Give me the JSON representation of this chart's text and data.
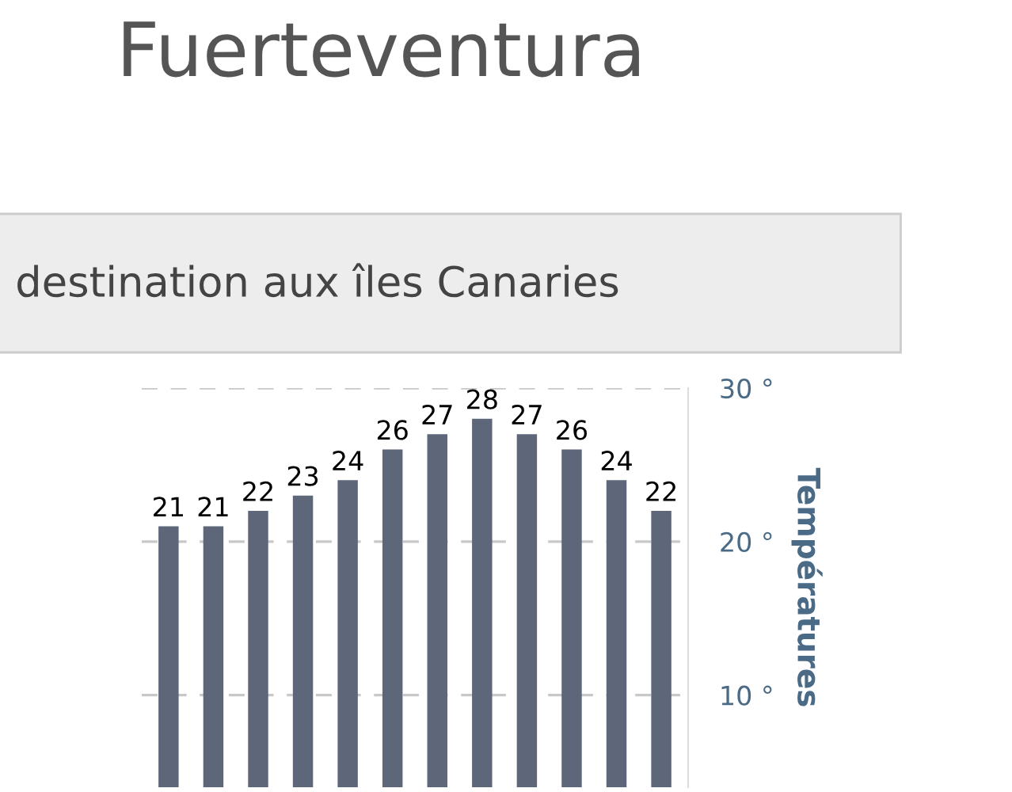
{
  "chart_data": {
    "type": "bar",
    "title": "Fuerteventura",
    "subtitle": "destination aux îles Canaries",
    "ylabel": "Températures",
    "categories": [
      null,
      null,
      null,
      null,
      null,
      null,
      null,
      null,
      null,
      null,
      null,
      null
    ],
    "values": [
      21,
      21,
      22,
      23,
      24,
      26,
      27,
      28,
      27,
      26,
      24,
      22
    ],
    "color": "#5d6779",
    "data_labels": true,
    "ylim": [
      4,
      30
    ],
    "yticks": [
      {
        "value": 10,
        "label": "10 °"
      },
      {
        "value": 20,
        "label": "20 °"
      },
      {
        "value": 30,
        "label": "30 °"
      }
    ],
    "grid": "y",
    "tick_labels": "y"
  }
}
